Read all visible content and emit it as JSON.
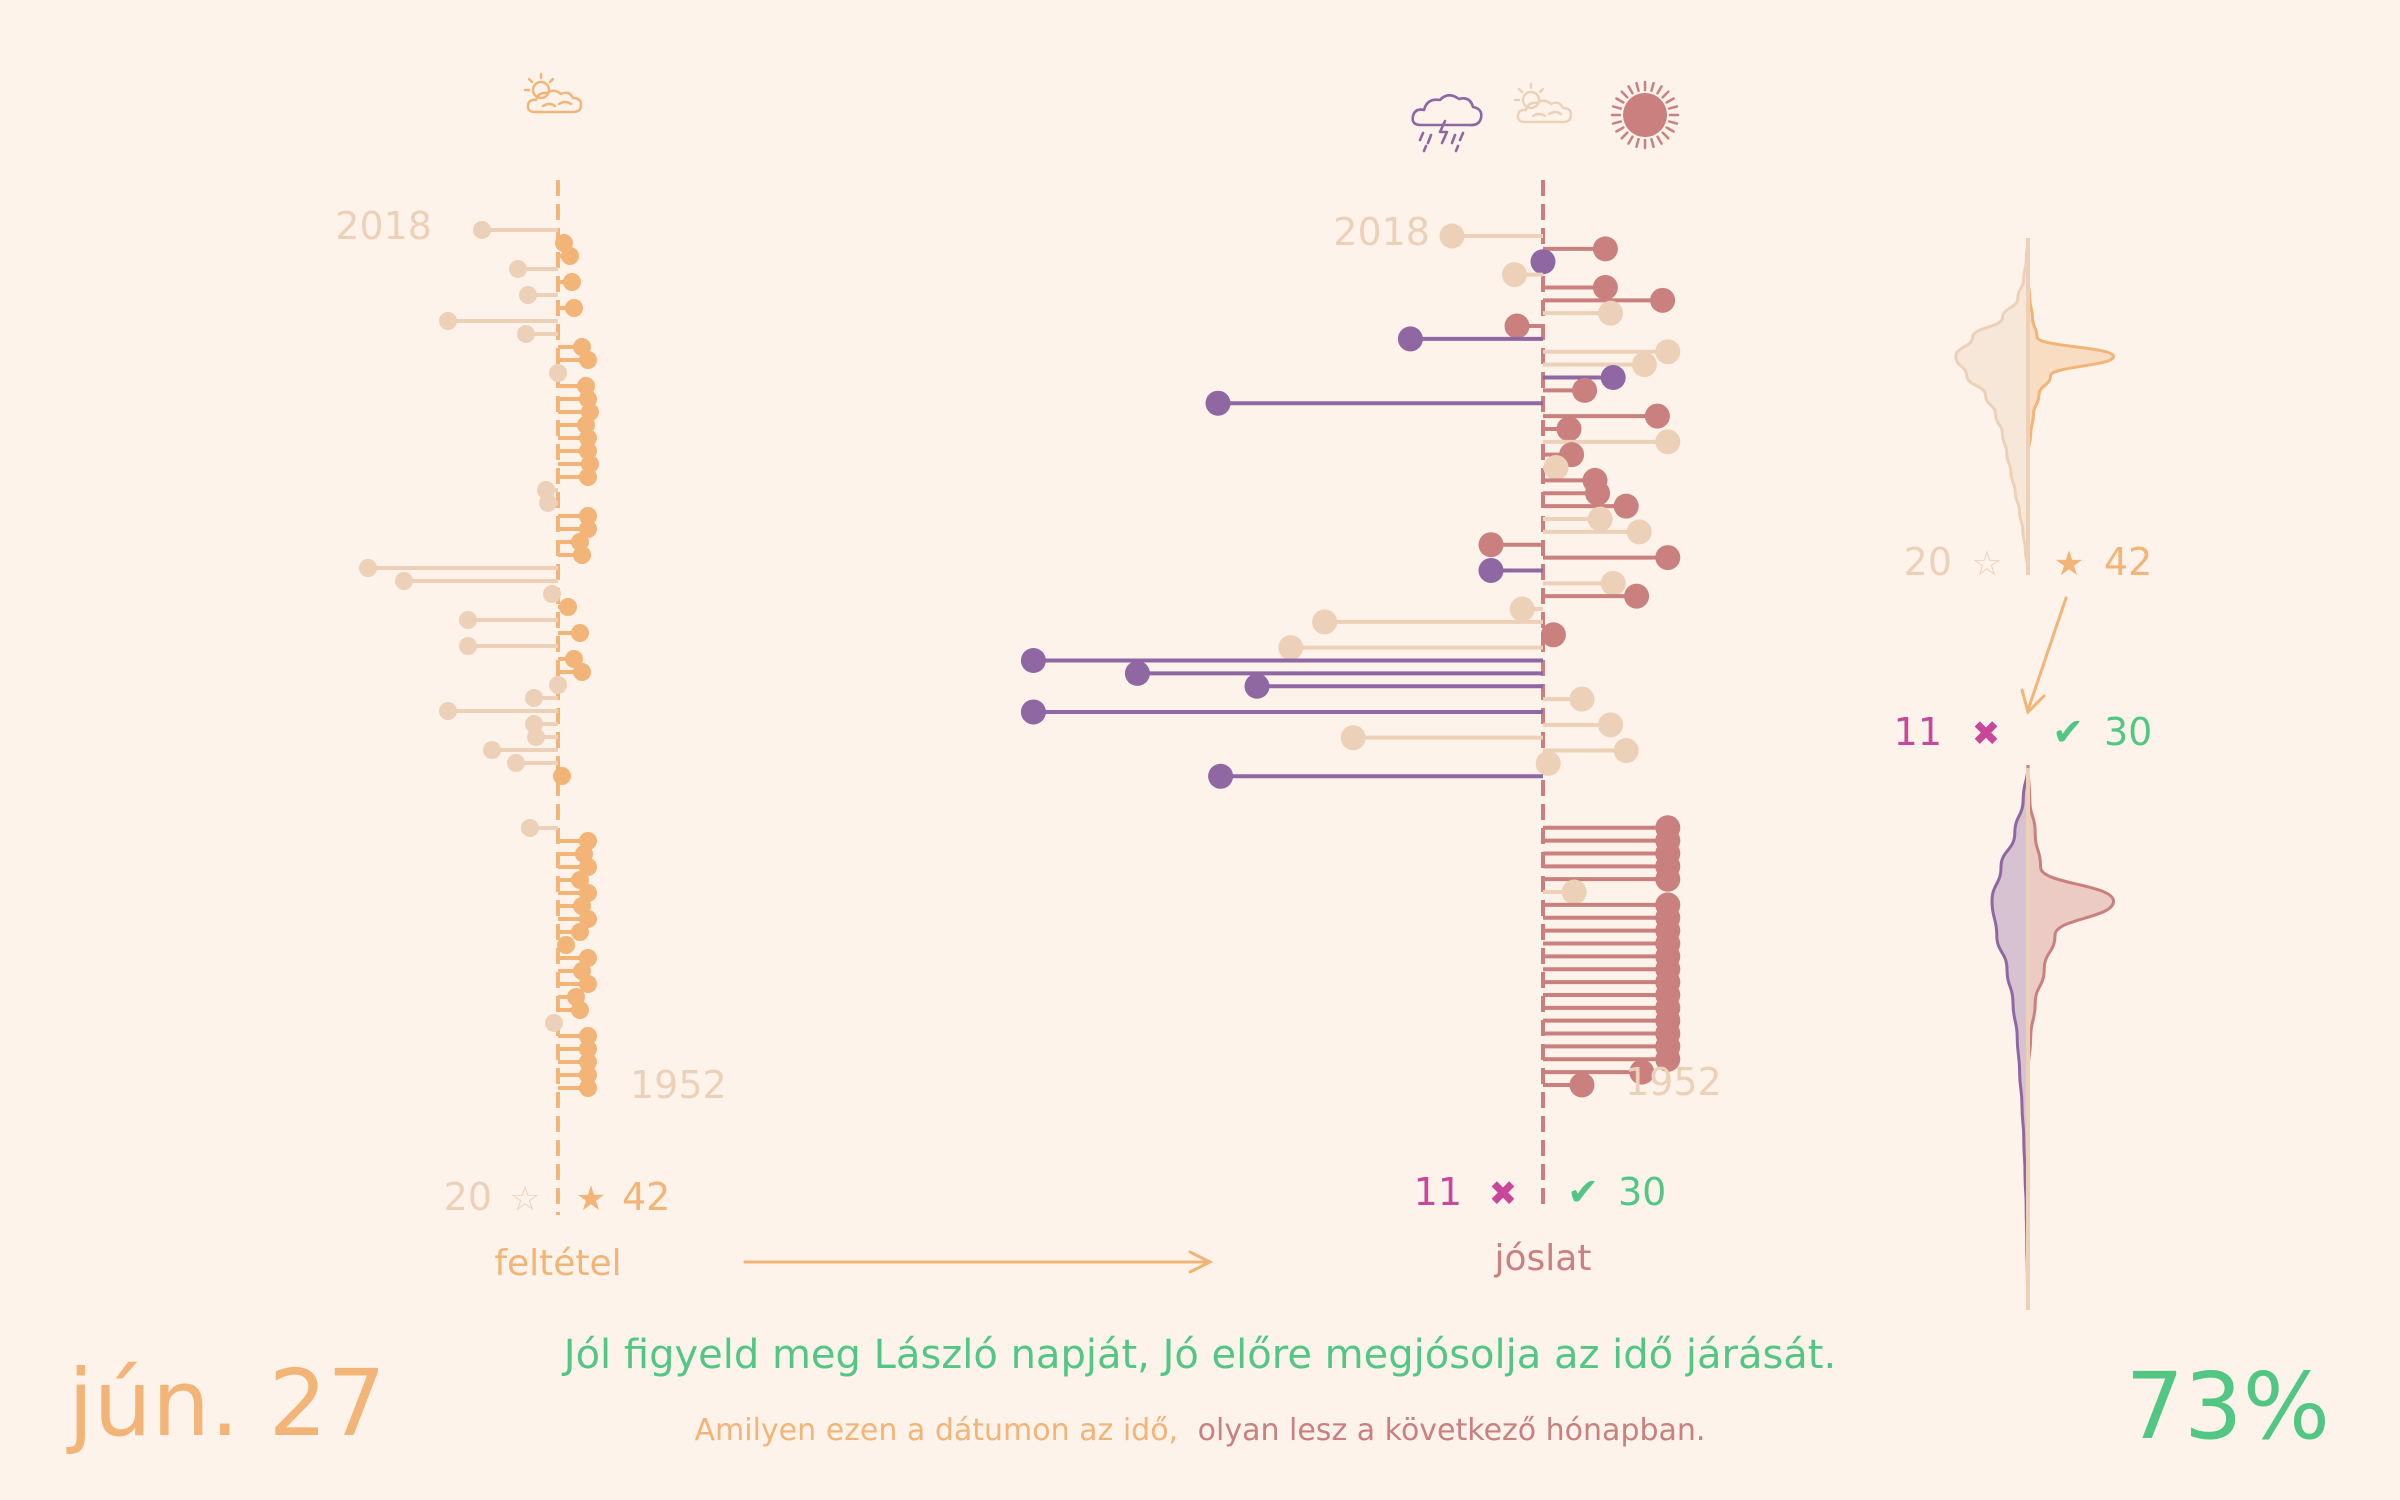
{
  "date_label": "jún. 27",
  "saying": "Jól figyeld meg László napját, Jó előre megjósolja az idő járását.",
  "subtitle_part1": "Amilyen ezen a dátumon az idő,",
  "subtitle_part2": "olyan lesz a következő hónapban.",
  "accuracy": "73%",
  "colors": {
    "background": "#fdf3ea",
    "condition": "#f2b477",
    "neutral": "#ecd1b8",
    "rain": "#8e67a3",
    "sun": "#c9807e",
    "check": "#52c784",
    "cross": "#c8479a"
  },
  "chart_data": [
    {
      "type": "lollipop",
      "role": "condition",
      "label": "feltétel",
      "icon": "sun-cloud-icon",
      "year_top": "2018",
      "year_bottom": "1952",
      "count_bad": "20",
      "count_good": "42",
      "bad_symbol": "☆",
      "good_symbol": "★",
      "years": [
        2018,
        2017,
        2016,
        2015,
        2014,
        2013,
        2012,
        2011,
        2010,
        2009,
        2008,
        2007,
        2006,
        2005,
        2004,
        2003,
        2002,
        2001,
        2000,
        1999,
        1998,
        1997,
        1996,
        1995,
        1994,
        1993,
        1992,
        1991,
        1990,
        1989,
        1988,
        1987,
        1986,
        1985,
        1984,
        1983,
        1982,
        1981,
        1980,
        1979,
        1978,
        1977,
        1976,
        1975,
        1974,
        1973,
        1972,
        1971,
        1970,
        1969,
        1968,
        1967,
        1966,
        1965,
        1964,
        1963,
        1962,
        1961,
        1960,
        1959,
        1958,
        1957,
        1956,
        1955,
        1954,
        1953,
        1952
      ],
      "values": [
        -3.8,
        0.3,
        0.6,
        -2,
        0.7,
        -1.5,
        0.8,
        -5.5,
        -1.6,
        1.2,
        1.5,
        0,
        1.4,
        1.5,
        1.6,
        1.4,
        1.5,
        1.5,
        1.6,
        1.5,
        -0.6,
        -0.5,
        1.5,
        1.5,
        1.1,
        1.2,
        -9.5,
        -7.7,
        -0.3,
        0.5,
        -4.5,
        1.1,
        -4.5,
        0.8,
        1.2,
        0,
        -1.2,
        -5.5,
        -1.2,
        -1.1,
        -3.3,
        -2.1,
        0.2,
        null,
        null,
        null,
        -1.4,
        1.5,
        1.3,
        1.5,
        1.1,
        1.5,
        1.2,
        1.5,
        1.1,
        0.4,
        1.5,
        1.2,
        1.5,
        0.9,
        1.1,
        -0.2,
        1.5,
        1.5,
        1.5,
        1.5,
        1.5
      ]
    },
    {
      "type": "lollipop",
      "role": "prediction",
      "label": "jóslat",
      "icons": [
        "storm-cloud-icon",
        "sun-cloud-icon",
        "sun-icon"
      ],
      "year_top": "2018",
      "year_bottom": "1952",
      "count_bad": "11",
      "count_good": "30",
      "bad_symbol": "✖",
      "good_symbol": "✔",
      "years": [
        2018,
        2017,
        2016,
        2015,
        2014,
        2013,
        2012,
        2011,
        2010,
        2009,
        2008,
        2007,
        2006,
        2005,
        2004,
        2003,
        2002,
        2001,
        2000,
        1999,
        1998,
        1997,
        1996,
        1995,
        1994,
        1993,
        1992,
        1991,
        1990,
        1989,
        1988,
        1987,
        1986,
        1985,
        1984,
        1983,
        1982,
        1981,
        1980,
        1979,
        1978,
        1977,
        1976,
        1975,
        1974,
        1973,
        1972,
        1971,
        1970,
        1969,
        1968,
        1967,
        1966,
        1965,
        1964,
        1963,
        1962,
        1961,
        1960,
        1959,
        1958,
        1957,
        1956,
        1955,
        1954,
        1953,
        1952
      ],
      "values": [
        -3.5,
        2.4,
        0,
        -1.1,
        2.4,
        4.6,
        2.6,
        -1,
        -5.1,
        4.8,
        3.9,
        2.7,
        1.6,
        -12.5,
        4.4,
        1,
        4.8,
        1.1,
        0.5,
        2,
        2.1,
        3.2,
        2.2,
        3.7,
        -2,
        4.8,
        -2,
        2.7,
        3.6,
        -0.8,
        -8.4,
        0.4,
        -9.7,
        -19.6,
        -15.6,
        -11,
        1.5,
        -19.6,
        2.6,
        -7.3,
        3.2,
        0.2,
        -12.4,
        null,
        null,
        null,
        4.8,
        4.8,
        4.8,
        4.8,
        4.8,
        1.2,
        4.8,
        4.8,
        4.8,
        4.8,
        4.8,
        4.8,
        4.8,
        4.8,
        4.8,
        4.8,
        4.8,
        4.8,
        4.8,
        3.8,
        1.5
      ],
      "kinds": [
        "neutral",
        "sun",
        "rain",
        "neutral",
        "sun",
        "sun",
        "neutral",
        "sun",
        "rain",
        "neutral",
        "neutral",
        "rain",
        "sun",
        "rain",
        "sun",
        "sun",
        "neutral",
        "sun",
        "neutral",
        "sun",
        "sun",
        "sun",
        "neutral",
        "neutral",
        "sun",
        "sun",
        "rain",
        "neutral",
        "sun",
        "neutral",
        "neutral",
        "sun",
        "neutral",
        "rain",
        "rain",
        "rain",
        "neutral",
        "rain",
        "neutral",
        "neutral",
        "neutral",
        "neutral",
        "rain",
        "",
        "",
        "",
        "sun",
        "sun",
        "sun",
        "sun",
        "sun",
        "neutral",
        "sun",
        "sun",
        "sun",
        "sun",
        "sun",
        "sun",
        "sun",
        "sun",
        "sun",
        "sun",
        "sun",
        "sun",
        "sun",
        "sun",
        "sun"
      ]
    },
    {
      "type": "density",
      "role": "condition-distribution",
      "count_bad": "20",
      "count_good": "42",
      "bad_symbol": "☆",
      "good_symbol": "★",
      "left_profile": [
        0,
        0.02,
        0.05,
        0.12,
        0.3,
        0.65,
        0.85,
        0.72,
        0.5,
        0.38,
        0.3,
        0.25,
        0.2,
        0.15,
        0.1,
        0.06,
        0.03,
        0
      ],
      "right_profile": [
        0,
        0,
        0,
        0.02,
        0.05,
        0.1,
        0.95,
        0.25,
        0.12,
        0.06,
        0.03,
        0,
        0,
        0,
        0,
        0,
        0,
        0
      ]
    },
    {
      "type": "density",
      "role": "prediction-distribution",
      "count_bad": "11",
      "count_good": "30",
      "bad_symbol": "✖",
      "good_symbol": "✔",
      "left_profile": [
        0,
        0.08,
        0.22,
        0.45,
        0.6,
        0.52,
        0.35,
        0.25,
        0.18,
        0.14,
        0.1,
        0.07,
        0.05,
        0.03,
        0.02,
        0.01,
        0
      ],
      "right_profile": [
        0,
        0.02,
        0.08,
        0.14,
        0.95,
        0.3,
        0.18,
        0.08,
        0.03,
        0,
        0,
        0,
        0,
        0,
        0,
        0,
        0
      ]
    }
  ]
}
